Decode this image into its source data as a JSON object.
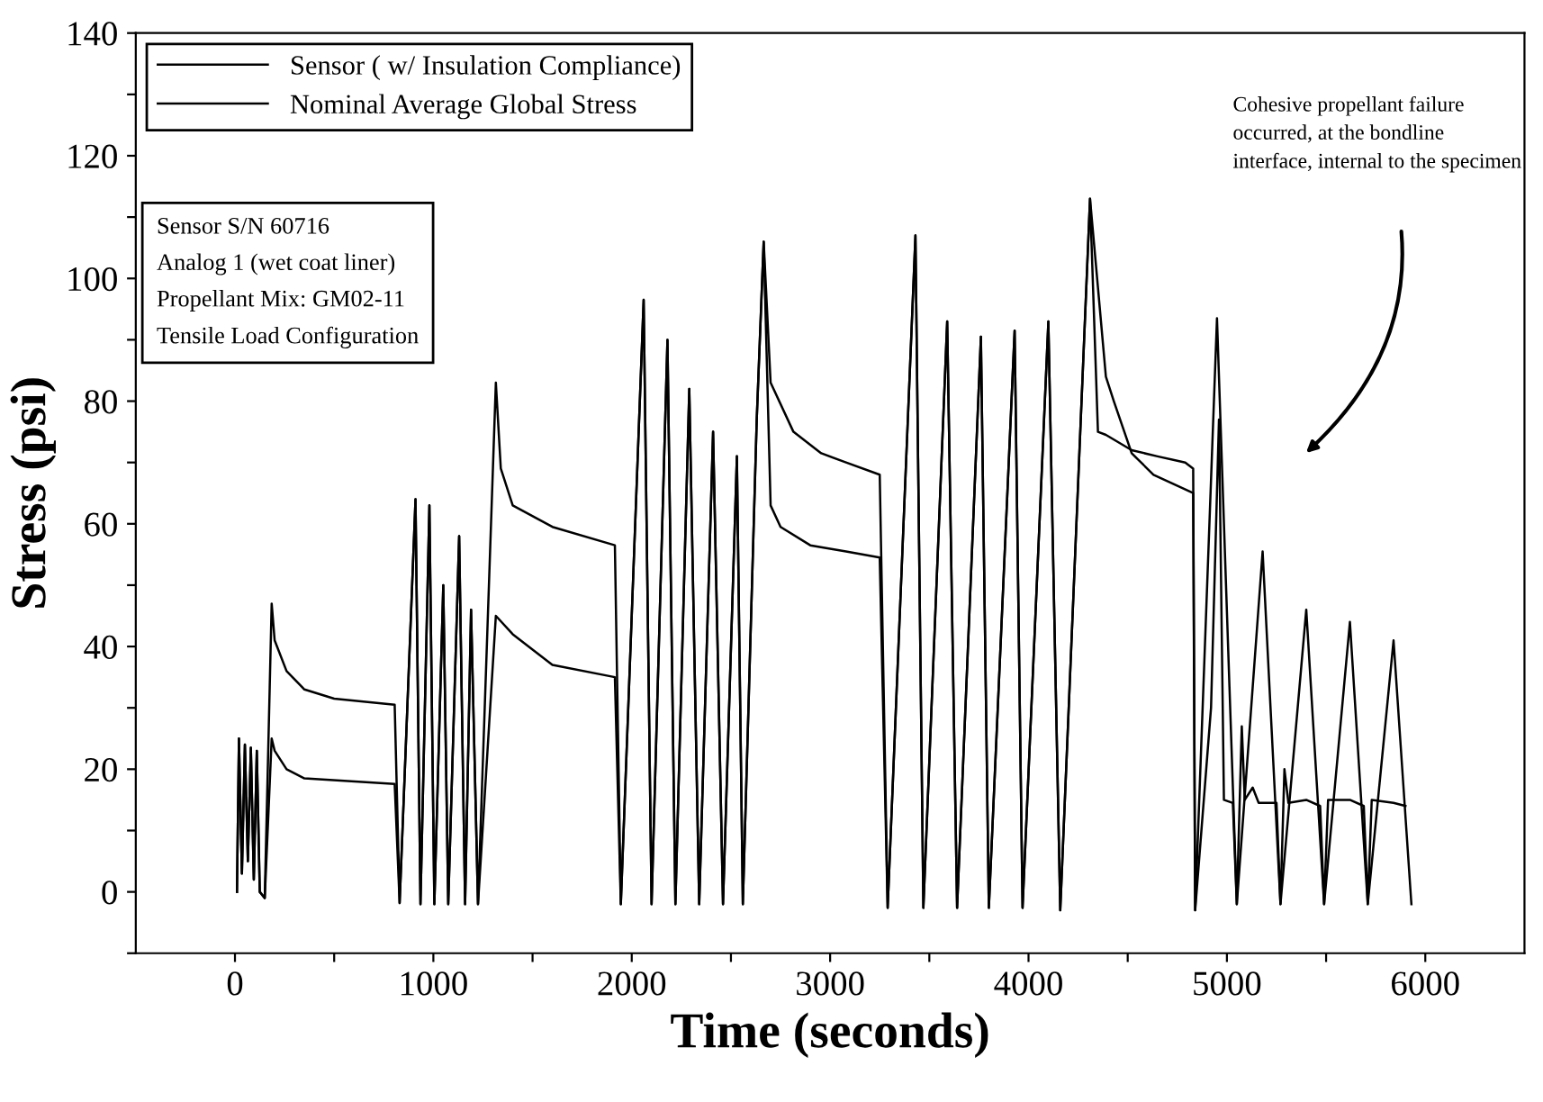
{
  "chart_data": {
    "type": "line",
    "xlabel": "Time (seconds)",
    "ylabel": "Stress (psi)",
    "xlim": [
      -500,
      6500
    ],
    "ylim": [
      -10,
      140
    ],
    "xticks": [
      0,
      {
        "value": 500,
        "label": null
      },
      1000,
      {
        "value": 1500,
        "label": null
      },
      2000,
      {
        "value": 2500,
        "label": null
      },
      3000,
      {
        "value": 3500,
        "label": null
      },
      4000,
      {
        "value": 4500,
        "label": null
      },
      5000,
      {
        "value": 5500,
        "label": null
      },
      6000
    ],
    "yticks": [
      {
        "value": -10,
        "label": null
      },
      0,
      {
        "value": 10,
        "label": null
      },
      20,
      {
        "value": 30,
        "label": null
      },
      40,
      {
        "value": 50,
        "label": null
      },
      60,
      {
        "value": 70,
        "label": null
      },
      80,
      {
        "value": 90,
        "label": null
      },
      100,
      {
        "value": 110,
        "label": null
      },
      120,
      {
        "value": 130,
        "label": null
      },
      140
    ],
    "grid": false,
    "legend": "top left",
    "marker": "none",
    "line_style": "solid",
    "series": [
      {
        "name": "Sensor ( w/ Insulation Compliance)",
        "color": "#000000",
        "x": [
          10,
          20,
          35,
          50,
          65,
          80,
          95,
          110,
          125,
          150,
          185,
          200,
          260,
          350,
          500,
          805,
          830,
          910,
          935,
          980,
          1005,
          1050,
          1075,
          1130,
          1160,
          1190,
          1225,
          1315,
          1340,
          1400,
          1600,
          1915,
          1945,
          2060,
          2100,
          2180,
          2220,
          2290,
          2340,
          2410,
          2460,
          2530,
          2560,
          2630,
          2665,
          2700,
          2815,
          2955,
          3080,
          3250,
          3290,
          3430,
          3470,
          3590,
          3640,
          3760,
          3800,
          3930,
          3970,
          4100,
          4160,
          4310,
          4350,
          4390,
          4430,
          4520,
          4630,
          4830,
          4840,
          4920,
          4960,
          4985,
          5030,
          5050,
          5075,
          5090,
          5130,
          5160,
          5250,
          5270,
          5290,
          5310,
          5400,
          5470,
          5490,
          5510,
          5620,
          5690,
          5710,
          5730,
          5840,
          5900
        ],
        "values": [
          0,
          25,
          3,
          24,
          5,
          23.5,
          2,
          23,
          0,
          -1,
          47,
          41,
          36,
          33,
          31.5,
          30.5,
          -1.8,
          64,
          -2,
          63,
          -2,
          50,
          -2,
          58,
          -2,
          46,
          -2,
          83,
          69,
          63,
          59.5,
          56.5,
          -2,
          96.5,
          -2,
          90,
          -2,
          82,
          -2,
          75,
          -2,
          71,
          -2,
          77,
          106,
          83,
          75,
          71.5,
          70,
          68,
          -2.6,
          107,
          -2.6,
          93,
          -2.6,
          90.5,
          -2.6,
          91.5,
          -2.6,
          93,
          -3,
          113,
          98.5,
          84,
          80,
          71.5,
          68,
          65,
          -3,
          30,
          77,
          15,
          14.5,
          -2,
          27,
          15,
          17,
          14.5,
          14.5,
          -2,
          20,
          14.5,
          15,
          14,
          -2,
          15,
          15,
          14,
          -2,
          15,
          14.5,
          14
        ]
      },
      {
        "name": "Nominal Average Global Stress",
        "color": "#000000",
        "x": [
          10,
          20,
          35,
          50,
          65,
          80,
          95,
          110,
          125,
          150,
          185,
          200,
          260,
          350,
          805,
          830,
          910,
          935,
          980,
          1005,
          1050,
          1075,
          1130,
          1160,
          1190,
          1225,
          1315,
          1400,
          1600,
          1915,
          1945,
          2060,
          2100,
          2180,
          2220,
          2290,
          2340,
          2410,
          2460,
          2530,
          2560,
          2630,
          2665,
          2700,
          2750,
          2900,
          3080,
          3250,
          3290,
          3430,
          3470,
          3590,
          3640,
          3760,
          3800,
          3930,
          3970,
          4100,
          4160,
          4310,
          4350,
          4390,
          4520,
          4650,
          4790,
          4830,
          4840,
          4950,
          5050,
          5180,
          5270,
          5400,
          5490,
          5620,
          5710,
          5840,
          5930
        ],
        "values": [
          0,
          25,
          3,
          24,
          5,
          23.5,
          2,
          23,
          0,
          -1,
          25,
          23,
          20,
          18.5,
          17.6,
          -1.8,
          64,
          -2,
          63,
          -2,
          50,
          -2,
          58,
          -2,
          46,
          -2,
          45,
          42,
          37,
          35,
          -2,
          96.5,
          -2,
          90,
          -2,
          82,
          -2,
          75,
          -2,
          71,
          -2,
          77,
          106,
          63,
          59.5,
          56.5,
          55.5,
          54.5,
          -2.6,
          107,
          -2.6,
          93,
          -2.6,
          90.5,
          -2.6,
          91.5,
          -2.6,
          93,
          -3,
          113,
          75,
          74.5,
          72,
          71,
          70,
          69,
          -3,
          93.5,
          -2,
          55.5,
          -2,
          46,
          -2,
          44,
          -2,
          41,
          -2
        ]
      }
    ],
    "annotations": [
      "Sensor S/N 60716\nAnalog 1 (wet coat liner)\nPropellant Mix: GM02-11\nTensile Load Configuration",
      "Cohesive propellant failure\noccurred, at the bondline\ninterface, internal to the specimen"
    ]
  }
}
